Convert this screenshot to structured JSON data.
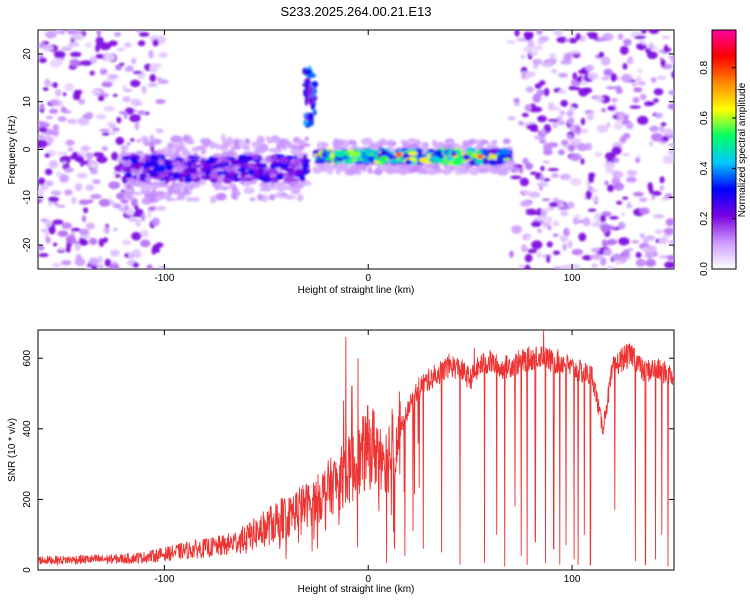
{
  "title": "S233.2025.264.00.21.E13",
  "chart_data": [
    {
      "type": "heatmap",
      "xlabel": "Height of straight line (km)",
      "ylabel": "Frequency (Hz)",
      "xlim": [
        -162,
        150
      ],
      "ylim": [
        -25,
        25
      ],
      "xticks": [
        -100,
        0,
        100
      ],
      "yticks": [
        -20,
        -10,
        0,
        10,
        20
      ],
      "colorbar": {
        "label": "Normalized spectral amplitude",
        "range": [
          0,
          0.95
        ],
        "ticks": [
          0.0,
          0.2,
          0.4,
          0.6,
          0.8
        ],
        "colormap": [
          "#ffffff",
          "#cc99ff",
          "#7a00e0",
          "#0000ff",
          "#00c8ff",
          "#00ff66",
          "#ffff00",
          "#ff8800",
          "#ff0000",
          "#ff00a0"
        ]
      },
      "features": [
        {
          "name": "noise-region-left",
          "x_range": [
            -162,
            -100
          ],
          "freq_range": [
            -25,
            25
          ],
          "amplitude": 0.12
        },
        {
          "name": "noise-region-right",
          "x_range": [
            70,
            150
          ],
          "freq_range": [
            -25,
            25
          ],
          "amplitude": 0.12
        },
        {
          "name": "band-left",
          "x_range": [
            -120,
            -30
          ],
          "center_freq": -4,
          "width": 5,
          "amplitude": 0.3
        },
        {
          "name": "burst-high-freq",
          "x_range": [
            -31,
            -26
          ],
          "freq_range": [
            5,
            17
          ],
          "amplitude": 0.35
        },
        {
          "name": "band-main",
          "x_range": [
            -25,
            70
          ],
          "center_freq": -1.5,
          "width": 2.5,
          "amplitude": 0.6
        },
        {
          "name": "peak-1",
          "x": 15,
          "freq": -1,
          "amplitude": 0.9
        },
        {
          "name": "peak-2",
          "x": 55,
          "freq": -1.5,
          "amplitude": 0.9
        }
      ]
    },
    {
      "type": "line",
      "xlabel": "Height of straight line (km)",
      "ylabel": "SNR (10 * v/v)",
      "xlim": [
        -162,
        150
      ],
      "ylim": [
        0,
        680
      ],
      "xticks": [
        -100,
        0,
        100
      ],
      "yticks": [
        0,
        200,
        400,
        600
      ],
      "color": "#ee3333",
      "x": [
        -162,
        -150,
        -140,
        -130,
        -120,
        -110,
        -100,
        -90,
        -80,
        -70,
        -60,
        -50,
        -45,
        -40,
        -35,
        -30,
        -25,
        -20,
        -15,
        -10,
        -5,
        0,
        5,
        10,
        15,
        20,
        25,
        30,
        35,
        40,
        45,
        50,
        55,
        60,
        65,
        70,
        75,
        80,
        85,
        90,
        95,
        100,
        105,
        110,
        115,
        120,
        125,
        130,
        135,
        140,
        145,
        150
      ],
      "values": [
        28,
        28,
        30,
        30,
        32,
        36,
        45,
        55,
        62,
        70,
        90,
        120,
        140,
        150,
        175,
        185,
        200,
        230,
        250,
        280,
        300,
        350,
        345,
        330,
        390,
        460,
        520,
        540,
        560,
        580,
        570,
        540,
        580,
        590,
        570,
        580,
        590,
        600,
        610,
        590,
        590,
        570,
        560,
        550,
        400,
        570,
        600,
        610,
        560,
        570,
        560,
        550
      ],
      "drops": [
        {
          "x": 9,
          "y": 20
        },
        {
          "x": 13,
          "y": 60
        },
        {
          "x": 18,
          "y": 40
        },
        {
          "x": 22,
          "y": 110
        },
        {
          "x": 27,
          "y": 60
        },
        {
          "x": 36,
          "y": 50
        },
        {
          "x": 45,
          "y": 15
        },
        {
          "x": 52,
          "y": 70
        },
        {
          "x": 57,
          "y": 20
        },
        {
          "x": 63,
          "y": 100
        },
        {
          "x": 67,
          "y": 10
        },
        {
          "x": 72,
          "y": 180
        },
        {
          "x": 75,
          "y": 40
        },
        {
          "x": 78,
          "y": 15
        },
        {
          "x": 82,
          "y": 80
        },
        {
          "x": 87,
          "y": 20
        },
        {
          "x": 91,
          "y": 60
        },
        {
          "x": 94,
          "y": 15
        },
        {
          "x": 97,
          "y": 70
        },
        {
          "x": 101,
          "y": 30
        },
        {
          "x": 103,
          "y": 15
        },
        {
          "x": 106,
          "y": 100
        },
        {
          "x": 109,
          "y": 15
        },
        {
          "x": 121,
          "y": 170
        },
        {
          "x": 131,
          "y": 25
        },
        {
          "x": 136,
          "y": 15
        },
        {
          "x": 141,
          "y": 30
        },
        {
          "x": 144,
          "y": 100
        },
        {
          "x": 147,
          "y": 10
        }
      ],
      "spikes": [
        {
          "x": -12,
          "y": 480
        },
        {
          "x": -11,
          "y": 660
        },
        {
          "x": -8,
          "y": 520
        },
        {
          "x": -5,
          "y": 600
        },
        {
          "x": 52,
          "y": 630
        },
        {
          "x": 86,
          "y": 680
        }
      ]
    }
  ]
}
